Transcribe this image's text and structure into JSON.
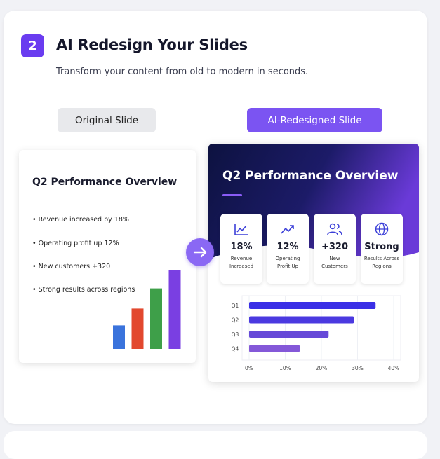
{
  "step": "2",
  "title": "AI Redesign Your Slides",
  "subtitle": "Transform your content from old to modern in seconds.",
  "tabs": [
    "Original Slide",
    "AI-Redesigned Slide"
  ],
  "original_slide": {
    "title": "Q2 Performance Overview",
    "bullets": [
      "Revenue increased by 18%",
      "Operating profit up 12%",
      "New customers +320",
      "Strong results across regions"
    ],
    "chart": {
      "type": "bar",
      "values": [
        28,
        48,
        72,
        94
      ],
      "colors": [
        "#3a73dc",
        "#e2482e",
        "#3e9f49",
        "#7a3fe2"
      ],
      "ylim": [
        0,
        100
      ]
    }
  },
  "redesigned_slide": {
    "title": "Q2 Performance Overview",
    "stats": [
      {
        "value": "18%",
        "label": "Revenue Increased"
      },
      {
        "value": "12%",
        "label": "Operating Profit Up"
      },
      {
        "value": "+320",
        "label": "New Customers"
      },
      {
        "value": "Strong",
        "label": "Results Across Regions"
      }
    ],
    "chart": {
      "type": "hbar",
      "categories": [
        "Q1",
        "Q2",
        "Q3",
        "Q4"
      ],
      "values": [
        35,
        29,
        22,
        14
      ],
      "colors": [
        "#3a2fe6",
        "#4b39e0",
        "#6649d8",
        "#8458d8"
      ],
      "xlim": [
        0,
        40
      ],
      "xticks": [
        {
          "value": 0,
          "label": "0%"
        },
        {
          "value": 10,
          "label": "10%"
        },
        {
          "value": 20,
          "label": "20%"
        },
        {
          "value": 30,
          "label": "30%"
        },
        {
          "value": 40,
          "label": "40%"
        }
      ],
      "grid": true
    }
  }
}
